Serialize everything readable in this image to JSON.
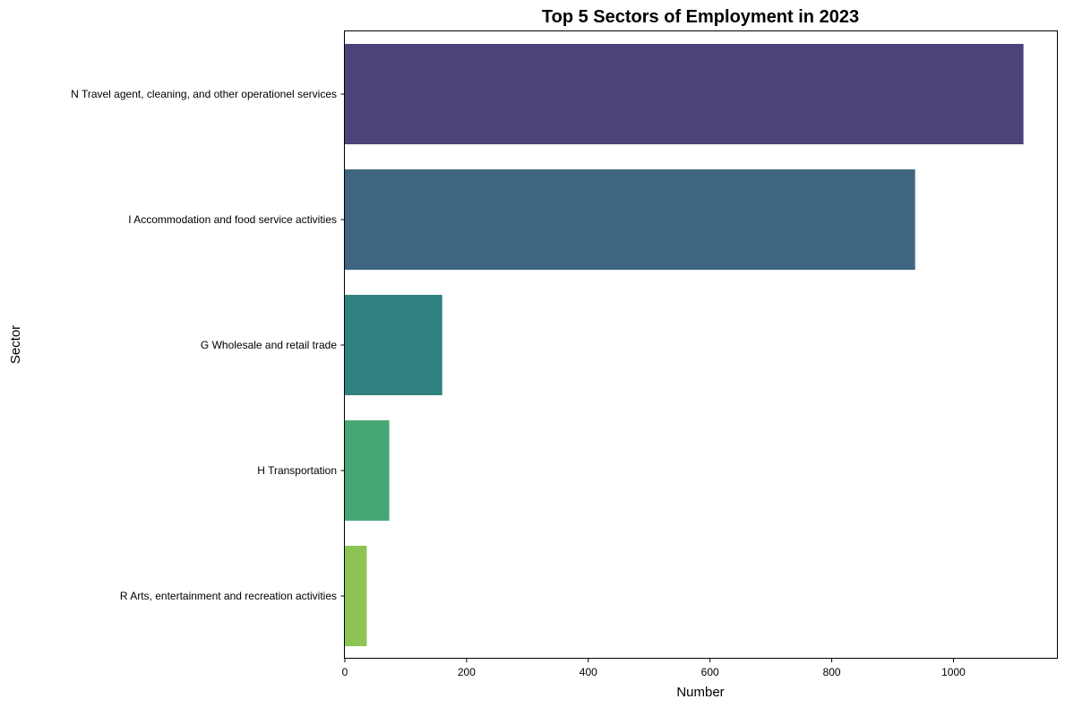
{
  "chart_data": {
    "type": "bar",
    "orientation": "horizontal",
    "title": "Top 5 Sectors of Employment in 2023",
    "xlabel": "Number",
    "ylabel": "Sector",
    "categories": [
      "N Travel agent, cleaning, and other operationel services",
      "I Accommodation and food service activities",
      "G Wholesale and retail trade",
      "H Transportation",
      "R Arts, entertainment and recreation activities"
    ],
    "values": [
      1115,
      937,
      160,
      73,
      36
    ],
    "colors": [
      "#4b4479",
      "#3e6681",
      "#2e817e",
      "#45a776",
      "#8dc453"
    ],
    "xlim": [
      0,
      1170
    ],
    "xticks": [
      0,
      200,
      400,
      600,
      800,
      1000
    ],
    "grid": false,
    "legend": "none"
  }
}
